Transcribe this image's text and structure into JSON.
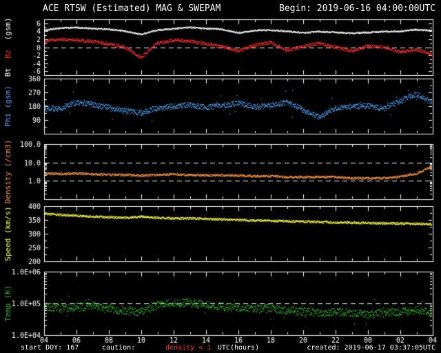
{
  "header": {
    "title": "ACE RTSW (Estimated) MAG & SWEPAM",
    "begin": "Begin: 2019-06-16 04:00:00UTC"
  },
  "footer": {
    "start_doy": "start DOY: 167",
    "caution_label": "caution:",
    "caution_value": "density < 1",
    "xaxis_label": "UTC(hours)",
    "created": "created: 2019-06-17 03:37:05UTC"
  },
  "colors": {
    "background": "#000000",
    "frame": "#ffffff",
    "bt": "#ffffff",
    "bz": "#ff3030",
    "phi": "#55aaff",
    "density": "#ff9944",
    "speed": "#ffff44",
    "temp": "#2fbf2f",
    "caution": "#ff3030"
  },
  "chart_data": {
    "type": "scatter",
    "title": "ACE RTSW (Estimated) MAG & SWEPAM",
    "xlabel": "UTC(hours)",
    "xlim": [
      4,
      28
    ],
    "xtick_labels": [
      "04",
      "06",
      "08",
      "10",
      "12",
      "14",
      "16",
      "18",
      "20",
      "22",
      "00",
      "02",
      "04"
    ],
    "x_hours": [
      4,
      5,
      6,
      7,
      8,
      9,
      10,
      11,
      12,
      13,
      14,
      15,
      16,
      17,
      18,
      19,
      20,
      21,
      22,
      23,
      24,
      25,
      26,
      27,
      28
    ],
    "panels": [
      {
        "name": "mag-field",
        "title_parts": [
          {
            "text": "Bt  ",
            "color": "#ffffff"
          },
          {
            "text": "Bz  ",
            "color": "#ff3030"
          },
          {
            "text": "(gsm)",
            "color": "#ffffff"
          }
        ],
        "scale": "linear",
        "ylim": [
          -7,
          7
        ],
        "yticks": [
          {
            "v": 6,
            "label": "6"
          },
          {
            "v": 4,
            "label": "4"
          },
          {
            "v": 2,
            "label": "2"
          },
          {
            "v": 0,
            "label": "0"
          },
          {
            "v": -2,
            "label": "-2"
          },
          {
            "v": -4,
            "label": "-4"
          },
          {
            "v": -6,
            "label": "-6"
          }
        ],
        "dashed": [
          0
        ],
        "series": [
          {
            "name": "Bt",
            "color": "#ffffff",
            "spread": 0.18,
            "values": [
              4.2,
              4.8,
              4.9,
              4.7,
              4.5,
              4.0,
              3.2,
              4.3,
              4.6,
              5.0,
              4.7,
              4.5,
              3.6,
              4.2,
              4.3,
              4.0,
              3.6,
              3.9,
              3.7,
              3.5,
              3.7,
              3.9,
              4.0,
              4.4,
              4.1
            ]
          },
          {
            "name": "Bz",
            "color": "#ff3030",
            "spread": 0.4,
            "values": [
              1.5,
              2.0,
              1.8,
              1.4,
              0.8,
              0.0,
              -2.6,
              1.0,
              1.8,
              1.5,
              0.8,
              0.2,
              -1.0,
              0.5,
              1.2,
              -0.8,
              0.2,
              1.0,
              0.0,
              -1.0,
              0.3,
              0.0,
              -1.2,
              -0.6,
              -1.8
            ]
          }
        ]
      },
      {
        "name": "phi",
        "title_parts": [
          {
            "text": "Phi ",
            "color": "#55aaff"
          },
          {
            "text": "(gsm)",
            "color": "#55aaff"
          }
        ],
        "scale": "linear",
        "ylim": [
          0,
          360
        ],
        "yticks": [
          {
            "v": 360,
            "label": "360"
          },
          {
            "v": 270,
            "label": "270"
          },
          {
            "v": 180,
            "label": "180"
          },
          {
            "v": 90,
            "label": "90"
          },
          {
            "v": 0
          }
        ],
        "dashed": [],
        "series": [
          {
            "name": "Phi",
            "color": "#55aaff",
            "spread": 18,
            "outlier_prob": 0.02,
            "outlier_spread": 85,
            "values": [
              170,
              160,
              205,
              190,
              170,
              150,
              135,
              170,
              178,
              188,
              172,
              185,
              200,
              175,
              185,
              205,
              155,
              105,
              170,
              178,
              182,
              165,
              215,
              260,
              200
            ]
          }
        ]
      },
      {
        "name": "density",
        "title_parts": [
          {
            "text": "Density ",
            "color": "#ff9944"
          },
          {
            "text": "(/cm3)",
            "color": "#ff9944"
          }
        ],
        "scale": "log",
        "ylim": [
          0.1,
          100
        ],
        "yticks": [
          {
            "v": 100,
            "label": "100.0"
          },
          {
            "v": 10,
            "label": "10.0"
          },
          {
            "v": 1,
            "label": "1.0"
          },
          {
            "v": 0.1
          }
        ],
        "dashed": [
          10,
          1
        ],
        "series": [
          {
            "name": "Density",
            "color": "#ff9944",
            "spread": 0.06,
            "values": [
              2.5,
              2.4,
              2.5,
              2.3,
              2.1,
              2.1,
              1.9,
              2.1,
              2.3,
              2.1,
              2.0,
              2.0,
              1.9,
              1.8,
              1.8,
              1.6,
              1.6,
              1.6,
              1.6,
              1.4,
              1.4,
              1.4,
              1.7,
              2.5,
              6.0
            ]
          }
        ]
      },
      {
        "name": "speed",
        "title_parts": [
          {
            "text": "Speed ",
            "color": "#ffff44"
          },
          {
            "text": "(km/s)",
            "color": "#ffff44"
          }
        ],
        "scale": "linear",
        "ylim": [
          200,
          400
        ],
        "yticks": [
          {
            "v": 400,
            "label": "400"
          },
          {
            "v": 350,
            "label": "350"
          },
          {
            "v": 300,
            "label": "300"
          },
          {
            "v": 250,
            "label": "250"
          },
          {
            "v": 200,
            "label": "200"
          }
        ],
        "dashed": [],
        "series": [
          {
            "name": "Speed",
            "color": "#ffff44",
            "spread": 4,
            "values": [
              372,
              368,
              365,
              362,
              360,
              358,
              362,
              358,
              355,
              356,
              354,
              352,
              350,
              348,
              347,
              345,
              344,
              342,
              341,
              340,
              339,
              338,
              337,
              336,
              334
            ]
          }
        ]
      },
      {
        "name": "temp",
        "title_parts": [
          {
            "text": "Temp ",
            "color": "#2fbf2f"
          },
          {
            "text": "(K)",
            "color": "#2fbf2f"
          }
        ],
        "scale": "log",
        "ylim": [
          10000,
          1000000
        ],
        "yticks": [
          {
            "v": 1000000,
            "label": "1.0E+06"
          },
          {
            "v": 100000,
            "label": "1.0E+05"
          },
          {
            "v": 10000,
            "label": "1.0E+04"
          }
        ],
        "dashed": [
          100000
        ],
        "series": [
          {
            "name": "Temp",
            "color": "#2fbf2f",
            "spread": 0.13,
            "outlier_prob": 0.02,
            "outlier_spread": 0.35,
            "values": [
              80000,
              70000,
              75000,
              85000,
              70000,
              60000,
              52000,
              90000,
              100000,
              105000,
              90000,
              80000,
              70000,
              65000,
              70000,
              60000,
              55000,
              50000,
              55000,
              50000,
              45000,
              50000,
              55000,
              60000,
              52000
            ]
          }
        ]
      }
    ]
  }
}
